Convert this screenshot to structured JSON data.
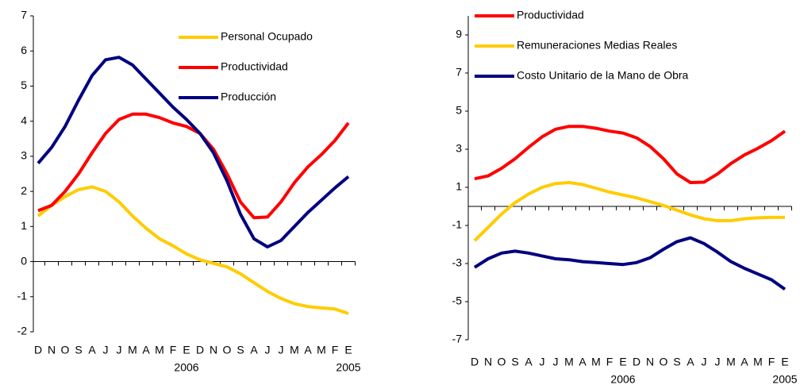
{
  "chart_data": [
    {
      "type": "line",
      "categories": [
        "D",
        "N",
        "O",
        "S",
        "A",
        "J",
        "J",
        "M",
        "A",
        "M",
        "F",
        "E",
        "D",
        "N",
        "O",
        "S",
        "A",
        "J",
        "J",
        "M",
        "A",
        "M",
        "F",
        "E"
      ],
      "year_labels": [
        null,
        null,
        null,
        null,
        null,
        null,
        null,
        null,
        null,
        null,
        null,
        "2006",
        null,
        null,
        null,
        null,
        null,
        null,
        null,
        null,
        null,
        null,
        null,
        "2005"
      ],
      "ylim": [
        -2,
        7
      ],
      "yticks": [
        -2,
        -1,
        0,
        1,
        2,
        3,
        4,
        5,
        6,
        7
      ],
      "legend": "upper right",
      "series": [
        {
          "name": "Personal Ocupado",
          "color": "#ffcc00",
          "values": [
            1.3,
            1.6,
            1.85,
            2.05,
            2.13,
            2.0,
            1.7,
            1.3,
            0.95,
            0.65,
            0.45,
            0.22,
            0.05,
            -0.05,
            -0.15,
            -0.35,
            -0.6,
            -0.85,
            -1.05,
            -1.2,
            -1.28,
            -1.32,
            -1.35,
            -1.48
          ]
        },
        {
          "name": "Productividad",
          "color": "#ff0000",
          "values": [
            1.45,
            1.6,
            2.0,
            2.5,
            3.1,
            3.65,
            4.05,
            4.2,
            4.2,
            4.1,
            3.95,
            3.85,
            3.65,
            3.2,
            2.5,
            1.7,
            1.25,
            1.27,
            1.7,
            2.25,
            2.7,
            3.05,
            3.45,
            3.95
          ]
        },
        {
          "name": "Producción",
          "color": "#000080",
          "values": [
            2.8,
            3.25,
            3.85,
            4.6,
            5.3,
            5.75,
            5.82,
            5.6,
            5.2,
            4.8,
            4.4,
            4.05,
            3.65,
            3.1,
            2.3,
            1.35,
            0.65,
            0.42,
            0.6,
            1.0,
            1.4,
            1.75,
            2.1,
            2.42
          ]
        }
      ]
    },
    {
      "type": "line",
      "categories": [
        "D",
        "N",
        "O",
        "S",
        "A",
        "J",
        "J",
        "M",
        "A",
        "M",
        "F",
        "E",
        "D",
        "N",
        "O",
        "S",
        "A",
        "J",
        "J",
        "M",
        "A",
        "M",
        "F",
        "E"
      ],
      "year_labels": [
        null,
        null,
        null,
        null,
        null,
        null,
        null,
        null,
        null,
        null,
        null,
        "2006",
        null,
        null,
        null,
        null,
        null,
        null,
        null,
        null,
        null,
        null,
        null,
        "2005"
      ],
      "ylim": [
        -7,
        10
      ],
      "yticks": [
        -7,
        -5,
        -3,
        -1,
        1,
        3,
        5,
        7,
        9
      ],
      "legend": "upper left",
      "series": [
        {
          "name": "Productividad",
          "color": "#ff0000",
          "values": [
            1.45,
            1.6,
            2.0,
            2.5,
            3.1,
            3.65,
            4.05,
            4.2,
            4.2,
            4.1,
            3.95,
            3.85,
            3.6,
            3.15,
            2.5,
            1.7,
            1.25,
            1.27,
            1.7,
            2.25,
            2.7,
            3.05,
            3.45,
            3.95
          ]
        },
        {
          "name": "Remuneraciones Medias Reales",
          "color": "#ffcc00",
          "values": [
            -1.8,
            -1.1,
            -0.4,
            0.2,
            0.65,
            1.0,
            1.2,
            1.25,
            1.15,
            0.95,
            0.75,
            0.6,
            0.45,
            0.25,
            0.05,
            -0.2,
            -0.45,
            -0.65,
            -0.75,
            -0.75,
            -0.65,
            -0.6,
            -0.58,
            -0.58
          ]
        },
        {
          "name": "Costo Unitario de la Mano de Obra",
          "color": "#000080",
          "values": [
            -3.2,
            -2.75,
            -2.45,
            -2.35,
            -2.45,
            -2.6,
            -2.75,
            -2.8,
            -2.9,
            -2.95,
            -3.0,
            -3.05,
            -2.95,
            -2.7,
            -2.25,
            -1.85,
            -1.65,
            -1.95,
            -2.4,
            -2.9,
            -3.25,
            -3.55,
            -3.85,
            -4.35
          ]
        }
      ]
    }
  ]
}
